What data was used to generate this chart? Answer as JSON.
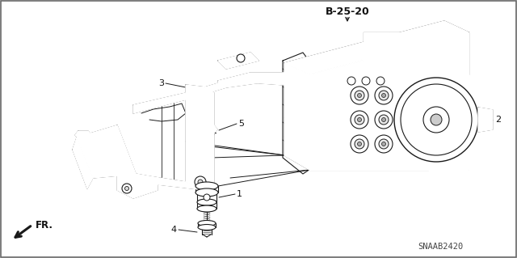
{
  "bg_color": "#ffffff",
  "lc": "#1a1a1a",
  "tc": "#111111",
  "label_b2520": "B-25-20",
  "label_fr": "FR.",
  "label_snaab": "SNAAB2420",
  "figsize": [
    6.4,
    3.19
  ],
  "dpi": 100
}
